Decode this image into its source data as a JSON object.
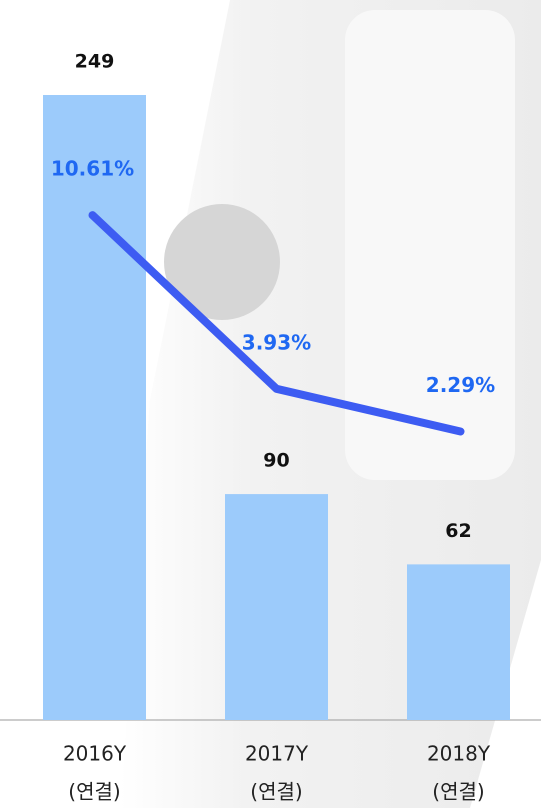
{
  "chart_data": {
    "type": "bar-line",
    "categories": [
      [
        "2016Y",
        "(연결)"
      ],
      [
        "2017Y",
        "(연결)"
      ],
      [
        "2018Y",
        "(연결)"
      ]
    ],
    "series": [
      {
        "type": "bar",
        "color": "#9ccbfb",
        "values": [
          249,
          90,
          62
        ]
      },
      {
        "type": "line",
        "axis": "y2",
        "color": "#3d5cf2",
        "label_color": "#1f68f2",
        "values": [
          10.61,
          3.93,
          2.29
        ],
        "value_labels": [
          "10.61%",
          "3.93%",
          "2.29%"
        ]
      }
    ]
  }
}
